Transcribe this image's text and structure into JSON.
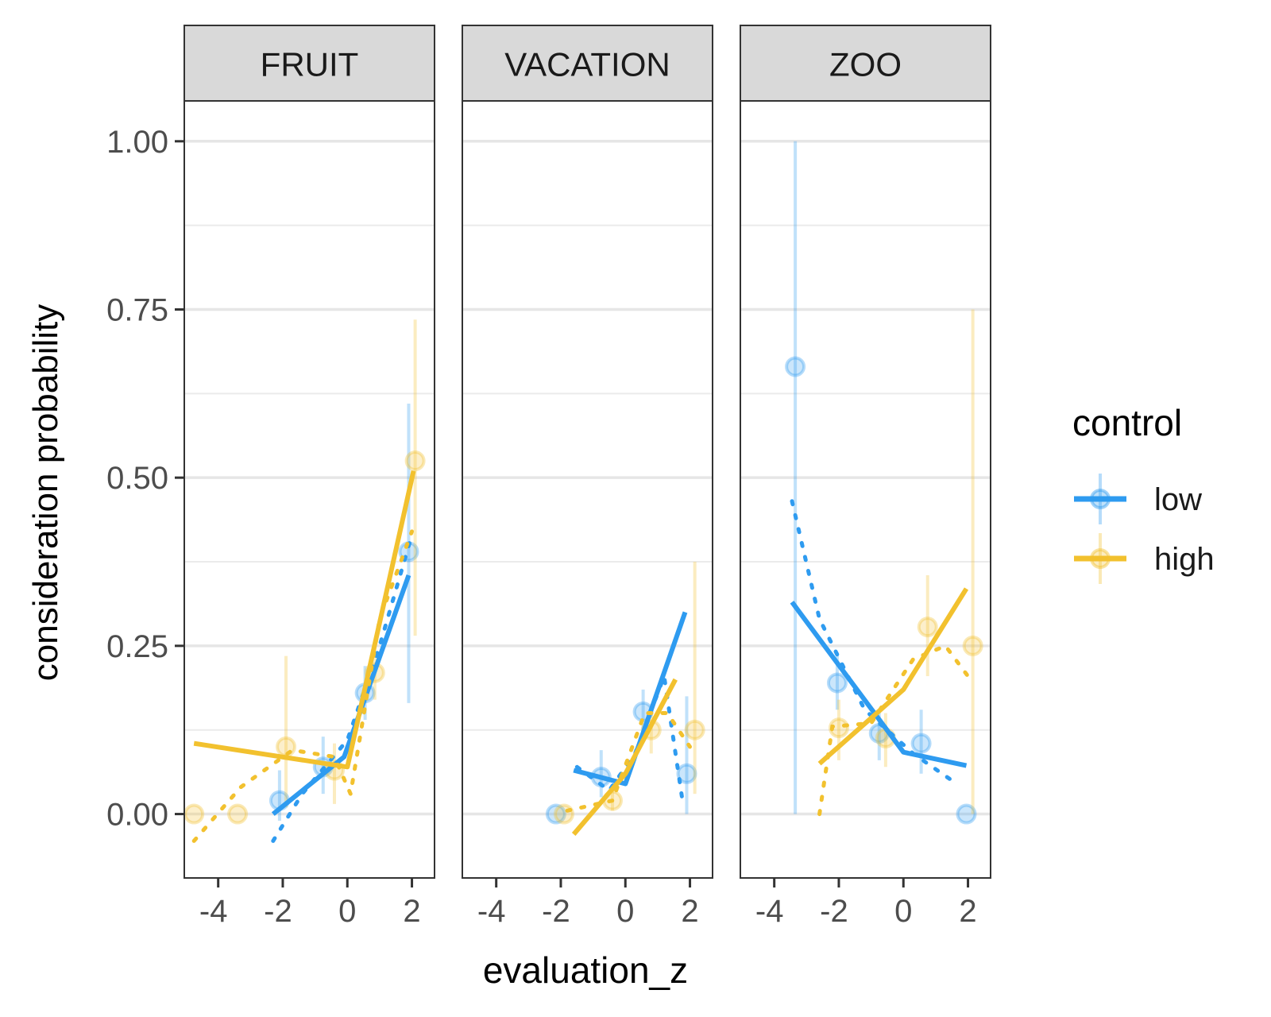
{
  "chart_data": {
    "type": "line",
    "xlabel": "evaluation_z",
    "ylabel": "consideration probability",
    "xlim": [
      -5.05,
      2.7
    ],
    "ylim": [
      -0.095,
      1.06
    ],
    "x_ticks": [
      -4,
      -2,
      0,
      2
    ],
    "y_ticks": [
      0,
      0.25,
      0.5,
      0.75,
      1
    ],
    "y_tick_labels": [
      "0.00",
      "0.25",
      "0.50",
      "0.75",
      "1.00"
    ],
    "grid": true,
    "legend": {
      "title": "control",
      "position": "right",
      "entries": [
        {
          "key": "low",
          "label": "low",
          "color": "#2E9BF0"
        },
        {
          "key": "high",
          "label": "high",
          "color": "#F2C12E"
        }
      ]
    },
    "panels": [
      {
        "title": "FRUIT",
        "series": {
          "low": {
            "points": [
              {
                "x": -2.1,
                "y": 0.02,
                "lo": -0.01,
                "hi": 0.065
              },
              {
                "x": -0.75,
                "y": 0.07,
                "lo": 0.03,
                "hi": 0.115
              },
              {
                "x": 0.55,
                "y": 0.18,
                "lo": 0.14,
                "hi": 0.22
              },
              {
                "x": 1.9,
                "y": 0.39,
                "lo": 0.165,
                "hi": 0.61
              }
            ],
            "solid": [
              [
                -2.3,
                0.0
              ],
              [
                -0.1,
                0.085
              ],
              [
                1.9,
                0.355
              ]
            ],
            "dotted": [
              [
                -2.3,
                -0.04
              ],
              [
                -1.4,
                0.03
              ],
              [
                0.0,
                0.11
              ],
              [
                1.0,
                0.25
              ],
              [
                2.0,
                0.415
              ]
            ]
          },
          "high": {
            "points": [
              {
                "x": -4.75,
                "y": 0.0,
                "lo": null,
                "hi": null
              },
              {
                "x": -3.4,
                "y": 0.0,
                "lo": null,
                "hi": null
              },
              {
                "x": -1.9,
                "y": 0.1,
                "lo": 0.01,
                "hi": 0.235
              },
              {
                "x": -0.4,
                "y": 0.065,
                "lo": 0.015,
                "hi": 0.105
              },
              {
                "x": 0.85,
                "y": 0.21,
                "lo": 0.17,
                "hi": 0.25
              },
              {
                "x": 2.1,
                "y": 0.525,
                "lo": 0.265,
                "hi": 0.735
              }
            ],
            "solid": [
              [
                -4.75,
                0.105
              ],
              [
                0.0,
                0.07
              ],
              [
                2.05,
                0.51
              ]
            ],
            "dotted": [
              [
                -4.75,
                -0.04
              ],
              [
                -3.3,
                0.04
              ],
              [
                -1.7,
                0.095
              ],
              [
                -0.4,
                0.085
              ],
              [
                0.1,
                0.03
              ],
              [
                1.0,
                0.29
              ],
              [
                2.0,
                0.42
              ]
            ]
          }
        }
      },
      {
        "title": "VACATION",
        "series": {
          "low": {
            "points": [
              {
                "x": -2.15,
                "y": 0.0,
                "lo": null,
                "hi": null
              },
              {
                "x": -0.75,
                "y": 0.055,
                "lo": 0.025,
                "hi": 0.095
              },
              {
                "x": 0.55,
                "y": 0.152,
                "lo": 0.12,
                "hi": 0.185
              },
              {
                "x": 1.9,
                "y": 0.06,
                "lo": 0.0,
                "hi": 0.175
              }
            ],
            "solid": [
              [
                -1.6,
                0.065
              ],
              [
                0.0,
                0.045
              ],
              [
                1.85,
                0.3
              ]
            ],
            "dotted": [
              [
                -1.5,
                0.07
              ],
              [
                -0.5,
                0.035
              ],
              [
                0.3,
                0.09
              ],
              [
                1.2,
                0.205
              ],
              [
                1.8,
                0.01
              ]
            ]
          },
          "high": {
            "points": [
              {
                "x": -1.9,
                "y": 0.0,
                "lo": null,
                "hi": null
              },
              {
                "x": -0.4,
                "y": 0.02,
                "lo": 0.005,
                "hi": 0.04
              },
              {
                "x": 0.8,
                "y": 0.125,
                "lo": 0.09,
                "hi": 0.16
              },
              {
                "x": 2.15,
                "y": 0.125,
                "lo": 0.03,
                "hi": 0.375
              }
            ],
            "solid": [
              [
                -1.6,
                -0.03
              ],
              [
                0.0,
                0.06
              ],
              [
                1.55,
                0.2
              ]
            ],
            "dotted": [
              [
                -1.8,
                0.005
              ],
              [
                -0.4,
                0.02
              ],
              [
                0.6,
                0.15
              ],
              [
                1.3,
                0.15
              ],
              [
                2.0,
                0.1
              ]
            ]
          }
        }
      },
      {
        "title": "ZOO",
        "series": {
          "low": {
            "points": [
              {
                "x": -3.35,
                "y": 0.665,
                "lo": 0.0,
                "hi": 1.0
              },
              {
                "x": -2.05,
                "y": 0.195,
                "lo": 0.155,
                "hi": 0.24
              },
              {
                "x": -0.75,
                "y": 0.12,
                "lo": 0.08,
                "hi": 0.155
              },
              {
                "x": 0.55,
                "y": 0.105,
                "lo": 0.06,
                "hi": 0.155
              },
              {
                "x": 1.95,
                "y": 0.0,
                "lo": null,
                "hi": null
              }
            ],
            "solid": [
              [
                -3.45,
                0.315
              ],
              [
                0.0,
                0.092
              ],
              [
                1.95,
                0.072
              ]
            ],
            "dotted": [
              [
                -3.45,
                0.465
              ],
              [
                -2.6,
                0.29
              ],
              [
                -1.2,
                0.155
              ],
              [
                0.3,
                0.09
              ],
              [
                1.5,
                0.05
              ]
            ]
          },
          "high": {
            "points": [
              {
                "x": -2.0,
                "y": 0.128,
                "lo": 0.08,
                "hi": 0.17
              },
              {
                "x": -0.55,
                "y": 0.113,
                "lo": 0.07,
                "hi": 0.15
              },
              {
                "x": 0.75,
                "y": 0.278,
                "lo": 0.205,
                "hi": 0.355
              },
              {
                "x": 2.15,
                "y": 0.25,
                "lo": 0.0,
                "hi": 0.75
              }
            ],
            "solid": [
              [
                -2.6,
                0.075
              ],
              [
                0.0,
                0.185
              ],
              [
                1.95,
                0.335
              ]
            ],
            "dotted": [
              [
                -2.6,
                0.0
              ],
              [
                -2.2,
                0.13
              ],
              [
                -1.0,
                0.135
              ],
              [
                0.3,
                0.23
              ],
              [
                1.3,
                0.25
              ],
              [
                2.0,
                0.205
              ]
            ]
          }
        }
      }
    ]
  }
}
